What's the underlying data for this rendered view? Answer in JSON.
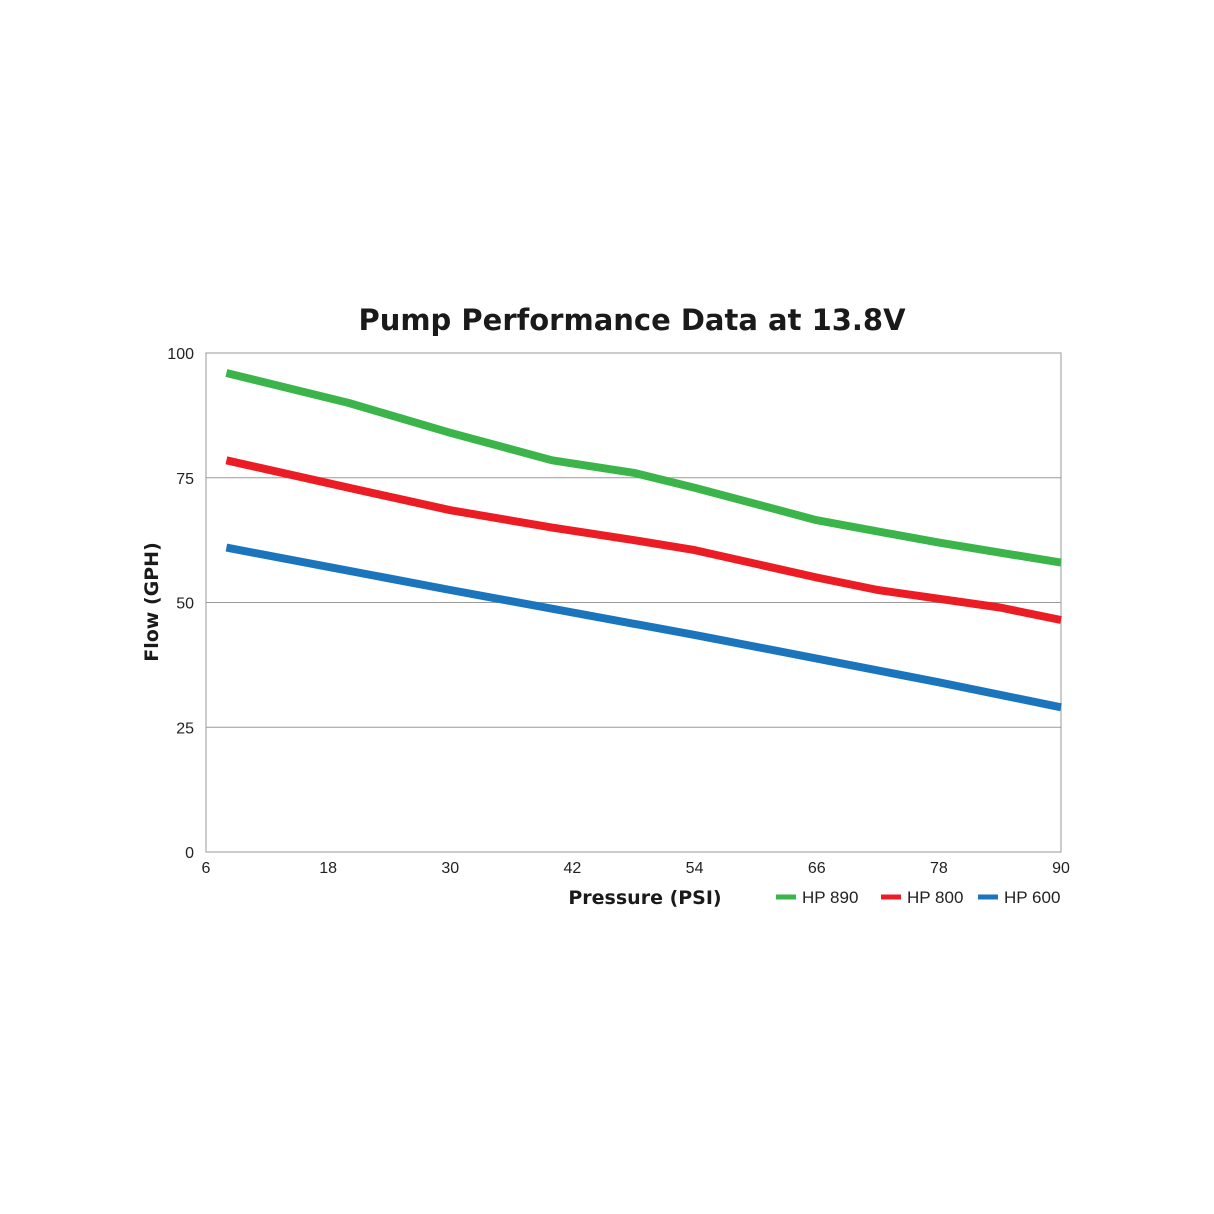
{
  "chart_data": {
    "type": "line",
    "title": "Pump Performance Data at 13.8V",
    "xlabel": "Pressure (PSI)",
    "ylabel": "Flow (GPH)",
    "xlim": [
      6,
      90
    ],
    "ylim": [
      0,
      100
    ],
    "x_ticks": [
      "6",
      "18",
      "30",
      "42",
      "54",
      "66",
      "78",
      "90"
    ],
    "y_ticks": [
      "0",
      "25",
      "50",
      "75",
      "100"
    ],
    "grid": "horizontal",
    "legend_position": "bottom-right",
    "series": [
      {
        "name": "HP 890",
        "color": "#3bb54a",
        "x": [
          8,
          20,
          30,
          40,
          48,
          54,
          66,
          78,
          90
        ],
        "y": [
          96,
          90,
          84,
          78.5,
          76,
          73,
          66.5,
          62,
          58
        ]
      },
      {
        "name": "HP 800",
        "color": "#ec1c24",
        "x": [
          8,
          20,
          30,
          40,
          48,
          54,
          66,
          72,
          84,
          90
        ],
        "y": [
          78.5,
          73,
          68.5,
          65,
          62.5,
          60.5,
          55,
          52.5,
          49,
          46.5
        ]
      },
      {
        "name": "HP 600",
        "color": "#1b75bc",
        "x": [
          8,
          30,
          54,
          78,
          90
        ],
        "y": [
          61,
          52.5,
          43.5,
          34,
          29
        ]
      }
    ]
  },
  "colors": {
    "grid": "#9a9a9a",
    "frame": "#9a9a9a",
    "text": "#1a1a1a"
  }
}
